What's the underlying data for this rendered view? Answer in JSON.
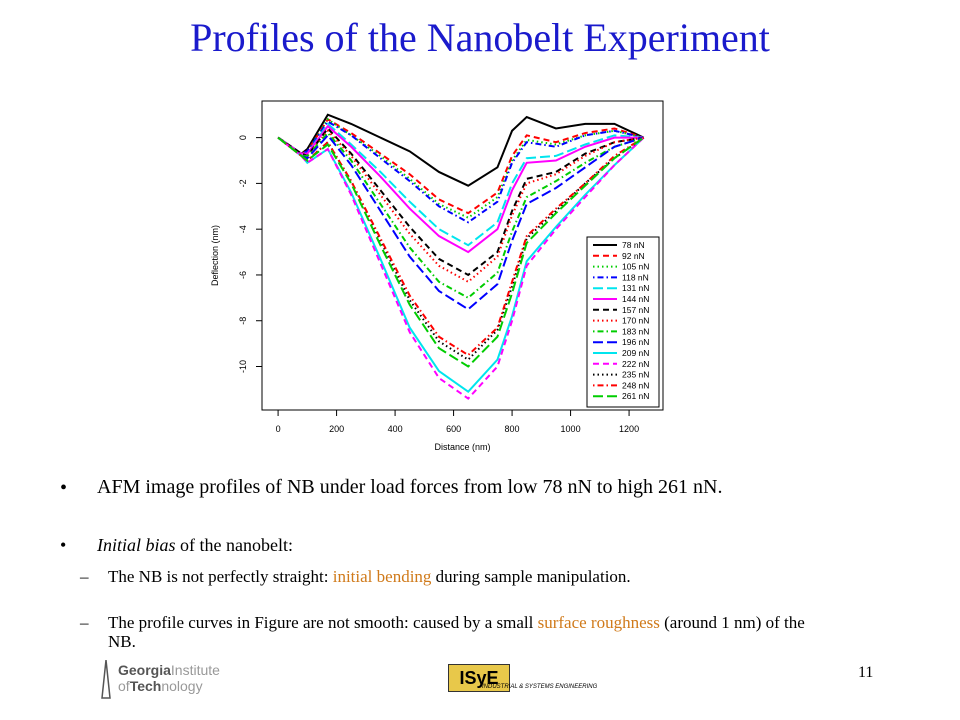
{
  "title": "Profiles of the Nanobelt Experiment",
  "chart_data": {
    "type": "line",
    "xlabel": "Distance (nm)",
    "ylabel": "Deflection (nm)",
    "x": [
      0,
      80,
      100,
      170,
      250,
      350,
      450,
      550,
      650,
      750,
      800,
      850,
      950,
      1050,
      1150,
      1250
    ],
    "xlim": [
      -55,
      1316
    ],
    "ylim": [
      -11.9,
      1.6
    ],
    "xticks": [
      0,
      200,
      400,
      600,
      800,
      1000,
      1200
    ],
    "yticks": [
      0,
      -2,
      -4,
      -6,
      -8,
      -10
    ],
    "legend": "lower right",
    "series": [
      {
        "name": "78 nN",
        "color": "#000000",
        "dash": "solid",
        "values": [
          0,
          -0.7,
          -0.5,
          1.0,
          0.6,
          0.0,
          -0.6,
          -1.5,
          -2.1,
          -1.3,
          0.3,
          0.9,
          0.4,
          0.6,
          0.6,
          0
        ]
      },
      {
        "name": "92 nN",
        "color": "#ff0000",
        "dash": "dashed",
        "values": [
          0,
          -0.7,
          -0.6,
          0.8,
          0.2,
          -0.7,
          -1.6,
          -2.7,
          -3.3,
          -2.4,
          -0.8,
          0.1,
          -0.2,
          0.2,
          0.4,
          0
        ]
      },
      {
        "name": "105 nN",
        "color": "#00cd00",
        "dash": "dotted",
        "values": [
          0,
          -0.7,
          -0.6,
          0.8,
          0.1,
          -0.8,
          -1.8,
          -2.9,
          -3.5,
          -2.6,
          -1.0,
          -0.1,
          -0.3,
          0.1,
          0.3,
          0
        ]
      },
      {
        "name": "118 nN",
        "color": "#0000ff",
        "dash": "dotdash",
        "values": [
          0,
          -0.7,
          -0.6,
          0.7,
          0.1,
          -0.9,
          -1.9,
          -3.0,
          -3.7,
          -2.8,
          -1.1,
          -0.2,
          -0.4,
          0.1,
          0.3,
          0
        ]
      },
      {
        "name": "131 nN",
        "color": "#00e5ee",
        "dash": "longdash",
        "values": [
          0,
          -0.7,
          -0.7,
          0.6,
          -0.3,
          -1.5,
          -2.8,
          -4.0,
          -4.7,
          -3.7,
          -2.0,
          -0.9,
          -0.8,
          -0.3,
          0.1,
          0
        ]
      },
      {
        "name": "144 nN",
        "color": "#ff00ff",
        "dash": "solid",
        "values": [
          0,
          -0.7,
          -0.7,
          0.5,
          -0.4,
          -1.7,
          -3.1,
          -4.3,
          -5.0,
          -4.0,
          -2.3,
          -1.1,
          -1.0,
          -0.4,
          0.0,
          0
        ]
      },
      {
        "name": "157 nN",
        "color": "#000000",
        "dash": "dashed",
        "values": [
          0,
          -0.7,
          -0.8,
          0.4,
          -0.7,
          -2.3,
          -3.9,
          -5.3,
          -6.0,
          -5.0,
          -3.2,
          -1.8,
          -1.5,
          -0.7,
          -0.2,
          0
        ]
      },
      {
        "name": "170 nN",
        "color": "#ff0000",
        "dash": "dotted",
        "values": [
          0,
          -0.8,
          -0.8,
          0.3,
          -0.8,
          -2.5,
          -4.2,
          -5.6,
          -6.3,
          -5.2,
          -3.4,
          -2.0,
          -1.6,
          -0.8,
          -0.2,
          0
        ]
      },
      {
        "name": "183 nN",
        "color": "#00cd00",
        "dash": "dotdash",
        "values": [
          0,
          -0.8,
          -0.8,
          0.2,
          -1.0,
          -2.9,
          -4.8,
          -6.3,
          -7.0,
          -5.9,
          -4.1,
          -2.6,
          -1.9,
          -1.1,
          -0.4,
          0
        ]
      },
      {
        "name": "196 nN",
        "color": "#0000ff",
        "dash": "longdash",
        "values": [
          0,
          -0.8,
          -0.9,
          0.1,
          -1.2,
          -3.2,
          -5.2,
          -6.7,
          -7.5,
          -6.4,
          -4.5,
          -2.9,
          -2.2,
          -1.3,
          -0.4,
          0
        ]
      },
      {
        "name": "209 nN",
        "color": "#00e5ee",
        "dash": "solid",
        "values": [
          0,
          -0.8,
          -1.1,
          -0.5,
          -2.4,
          -5.3,
          -8.3,
          -10.2,
          -11.1,
          -9.7,
          -7.8,
          -5.4,
          -3.9,
          -2.5,
          -1.2,
          0
        ]
      },
      {
        "name": "222 nN",
        "color": "#ff00ff",
        "dash": "dashed",
        "values": [
          0,
          -0.8,
          -1.1,
          -0.5,
          -2.5,
          -5.5,
          -8.5,
          -10.5,
          -11.4,
          -10.0,
          -8.0,
          -5.6,
          -4.0,
          -2.6,
          -1.2,
          0
        ]
      },
      {
        "name": "235 nN",
        "color": "#000000",
        "dash": "dotted",
        "values": [
          0,
          -0.8,
          -1.0,
          -0.2,
          -1.9,
          -4.5,
          -7.1,
          -8.9,
          -9.7,
          -8.4,
          -6.5,
          -4.4,
          -3.2,
          -2.0,
          -0.9,
          0
        ]
      },
      {
        "name": "248 nN",
        "color": "#ff0000",
        "dash": "dotdash",
        "values": [
          0,
          -0.8,
          -1.0,
          -0.2,
          -1.9,
          -4.4,
          -6.9,
          -8.7,
          -9.5,
          -8.3,
          -6.3,
          -4.3,
          -3.1,
          -2.0,
          -0.8,
          0
        ]
      },
      {
        "name": "261 nN",
        "color": "#00cd00",
        "dash": "longdash",
        "values": [
          0,
          -0.8,
          -1.0,
          -0.3,
          -2.0,
          -4.7,
          -7.3,
          -9.2,
          -10.0,
          -8.7,
          -6.8,
          -4.6,
          -3.3,
          -2.1,
          -0.9,
          0
        ]
      }
    ]
  },
  "body": [
    {
      "runs": [
        "AFM image profiles of NB under load forces from low 78 nN to high 261 nN."
      ]
    },
    {
      "runs": [
        "Initial bias",
        " of the nanobelt:"
      ]
    },
    {
      "runs": [
        "The NB is not perfectly straight: ",
        "initial bending",
        " during sample manipulation."
      ]
    },
    {
      "runs": [
        "The profile curves in Figure are not smooth: caused by a small ",
        "surface roughness",
        " (around 1 nm) of the NB."
      ]
    }
  ],
  "footer": {
    "logo_left": [
      "Georgia",
      "Institute",
      "of",
      "Tech",
      "nology"
    ],
    "logo_right": [
      "ISyE",
      "INDUSTRIAL & SYSTEMS ENGINEERING"
    ],
    "page_number": "11"
  }
}
